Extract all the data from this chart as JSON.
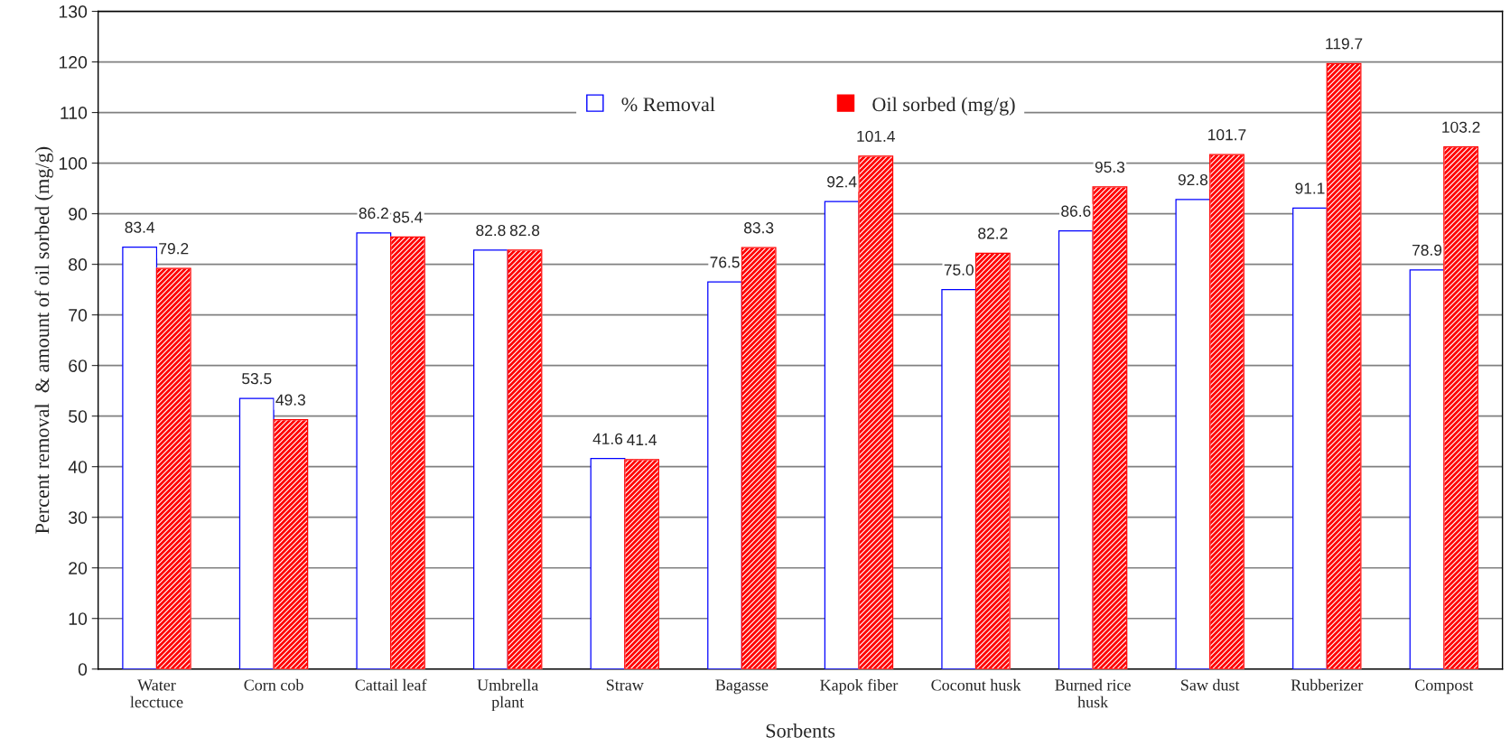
{
  "chart_data": {
    "type": "bar",
    "xlabel": "Sorbents",
    "ylabel": "Percent removal  & amount of oil sorbed (mg/g)",
    "categories": [
      "Water lecctuce",
      "Corn cob",
      "Cattail leaf",
      "Umbrella plant",
      "Straw",
      "Bagasse",
      "Kapok fiber",
      "Coconut husk",
      "Burned rice husk",
      "Saw dust",
      "Rubberizer",
      "Compost"
    ],
    "series": [
      {
        "name": "% Removal",
        "color": "#0000ff",
        "values": [
          83.4,
          53.5,
          86.2,
          82.8,
          41.6,
          76.5,
          92.4,
          75.0,
          86.6,
          92.8,
          91.1,
          78.9
        ],
        "value_labels": [
          "83.4",
          "53.5",
          "86.2",
          "82.8",
          "41.6",
          "76.5",
          "92.4",
          "75.0",
          "86.6",
          "92.8",
          "91.1",
          "78.9"
        ]
      },
      {
        "name": "Oil sorbed (mg/g)",
        "color": "#ff0000",
        "values": [
          79.2,
          49.3,
          85.4,
          82.8,
          41.4,
          83.3,
          101.4,
          82.2,
          95.3,
          101.7,
          119.7,
          103.2
        ],
        "value_labels": [
          "79.2",
          "49.3",
          "85.4",
          "82.8",
          "41.4",
          "83.3",
          "101.4",
          "82.2",
          "95.3",
          "101.7",
          "119.7",
          "103.2"
        ]
      }
    ],
    "ylim": [
      0,
      130
    ],
    "yticks": [
      0,
      10,
      20,
      30,
      40,
      50,
      60,
      70,
      80,
      90,
      100,
      110,
      120,
      130
    ],
    "grid": "y",
    "legend": "top"
  }
}
